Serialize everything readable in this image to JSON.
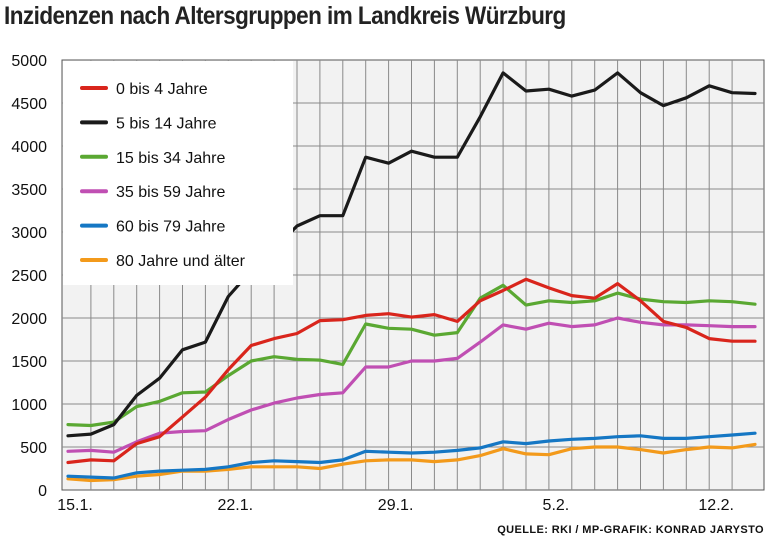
{
  "chart_data": {
    "type": "line",
    "title": "Inzidenzen nach Altersgruppen im Landkreis Würzburg",
    "source": "QUELLE: RKI / MP-GRAFIK: KONRAD JARYSTO",
    "xlabel": "",
    "ylabel": "",
    "ylim": [
      0,
      5000
    ],
    "yticks": [
      0,
      500,
      1000,
      1500,
      2000,
      2500,
      3000,
      3500,
      4000,
      4500,
      5000
    ],
    "x_start": "15.1.",
    "x_end": "14.2.",
    "xtick_labels": [
      "15.1.",
      "22.1.",
      "29.1.",
      "5.2.",
      "12.2."
    ],
    "grid": true,
    "legend_position": "top-left",
    "colors": {
      "0 bis 4 Jahre": "#d9251c",
      "5 bis 14 Jahre": "#1a1a1a",
      "15 bis 34 Jahre": "#5aa832",
      "35 bis 59 Jahre": "#c04fb3",
      "60 bis 79 Jahre": "#1577c4",
      "80 Jahre und älter": "#f39a1b"
    },
    "series": [
      {
        "name": "0 bis 4 Jahre",
        "values": [
          320,
          350,
          340,
          540,
          620,
          850,
          1080,
          1400,
          1680,
          1760,
          1820,
          1970,
          1980,
          2030,
          2050,
          2010,
          2040,
          1960,
          2200,
          2320,
          2450,
          2350,
          2260,
          2230,
          2400,
          2200,
          1960,
          1890,
          1760,
          1730,
          1730
        ]
      },
      {
        "name": "5 bis 14 Jahre",
        "values": [
          630,
          650,
          760,
          1100,
          1300,
          1630,
          1720,
          2250,
          2550,
          2800,
          3070,
          3190,
          3190,
          3870,
          3800,
          3940,
          3870,
          3870,
          4340,
          4850,
          4640,
          4660,
          4580,
          4650,
          4850,
          4620,
          4470,
          4560,
          4700,
          4620,
          4610
        ]
      },
      {
        "name": "15 bis 34 Jahre",
        "values": [
          760,
          750,
          790,
          970,
          1030,
          1130,
          1140,
          1330,
          1500,
          1550,
          1520,
          1510,
          1460,
          1930,
          1880,
          1870,
          1800,
          1830,
          2230,
          2380,
          2150,
          2200,
          2180,
          2200,
          2290,
          2220,
          2190,
          2180,
          2200,
          2190,
          2160
        ]
      },
      {
        "name": "35 bis 59 Jahre",
        "values": [
          450,
          460,
          440,
          560,
          660,
          680,
          690,
          820,
          930,
          1010,
          1070,
          1110,
          1130,
          1430,
          1430,
          1500,
          1500,
          1530,
          1720,
          1920,
          1870,
          1940,
          1900,
          1920,
          2000,
          1950,
          1920,
          1920,
          1910,
          1900,
          1900
        ]
      },
      {
        "name": "60 bis 79 Jahre",
        "values": [
          160,
          150,
          140,
          200,
          220,
          230,
          240,
          270,
          320,
          340,
          330,
          320,
          350,
          450,
          440,
          430,
          440,
          460,
          490,
          560,
          540,
          570,
          590,
          600,
          620,
          630,
          600,
          600,
          620,
          640,
          660
        ]
      },
      {
        "name": "80 Jahre und älter",
        "values": [
          130,
          110,
          120,
          160,
          180,
          220,
          220,
          240,
          270,
          270,
          270,
          250,
          300,
          340,
          350,
          350,
          330,
          350,
          400,
          480,
          420,
          410,
          480,
          500,
          500,
          470,
          430,
          470,
          500,
          490,
          530
        ]
      }
    ]
  }
}
